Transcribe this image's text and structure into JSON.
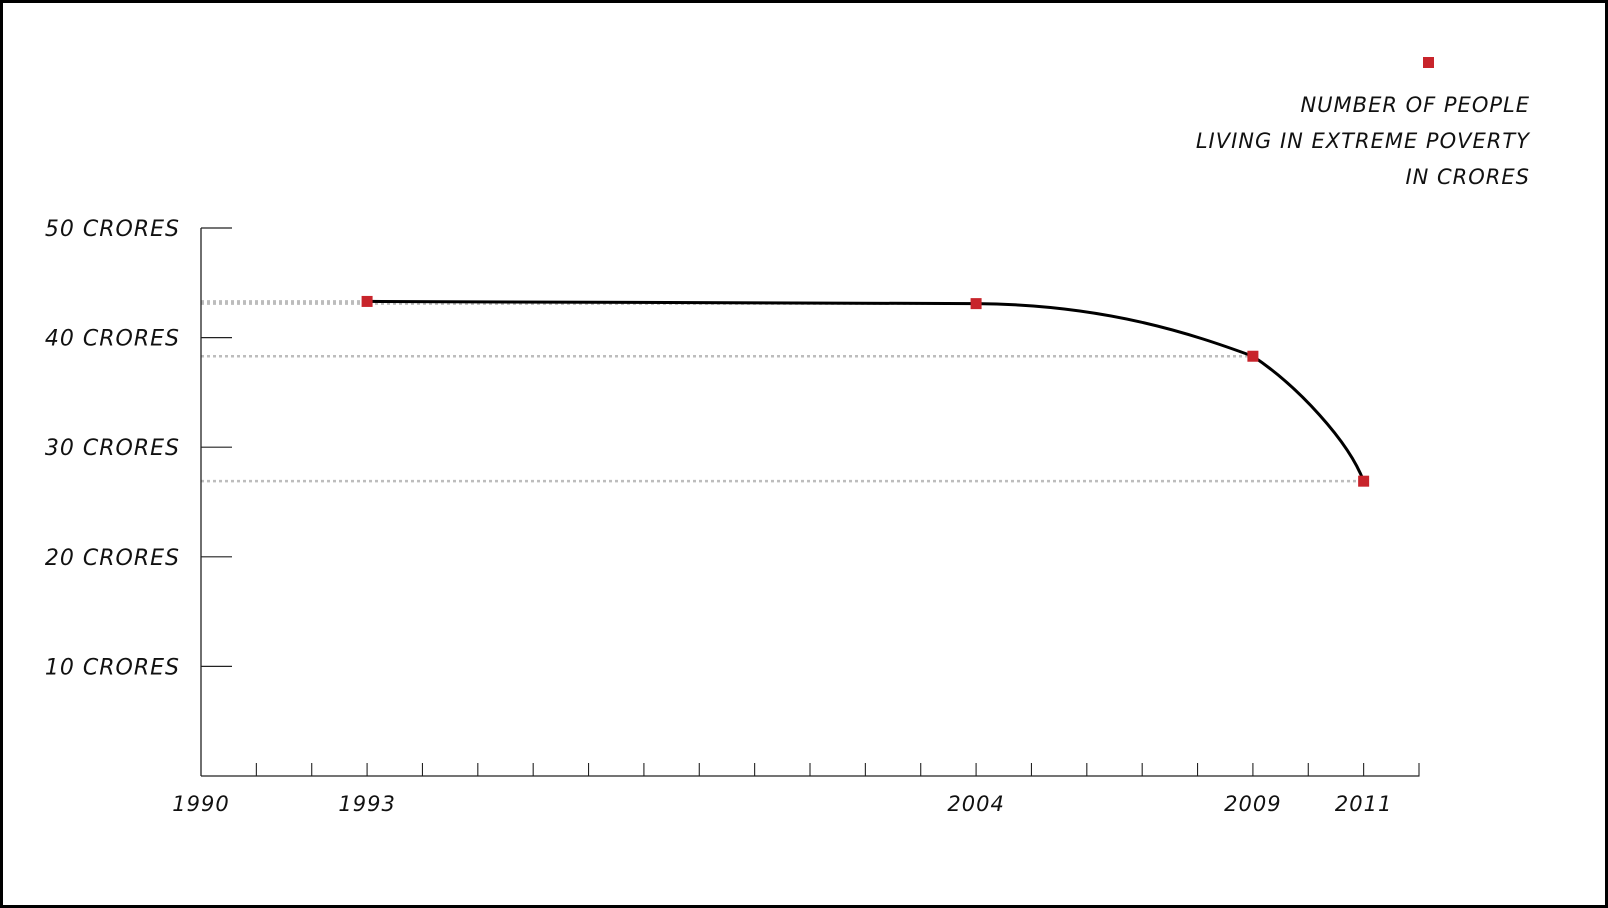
{
  "chart_data": {
    "type": "line",
    "title": "",
    "xlabel": "",
    "ylabel": "",
    "x": [
      1993,
      2004,
      2009,
      2011
    ],
    "series": [
      {
        "name": "NUMBER OF PEOPLE LIVING IN EXTREME POVERTY IN CRORES",
        "values": [
          43.3,
          43.1,
          38.3,
          26.9
        ],
        "color": "#c8242b"
      }
    ],
    "xlim": [
      1990,
      2012
    ],
    "ylim": [
      0,
      50
    ],
    "x_tick_labels": [
      {
        "year": 1990,
        "label": "1990"
      },
      {
        "year": 1993,
        "label": "1993"
      },
      {
        "year": 2004,
        "label": "2004"
      },
      {
        "year": 2009,
        "label": "2009"
      },
      {
        "year": 2011,
        "label": "2011"
      }
    ],
    "y_tick_labels": [
      {
        "value": 10,
        "label": "10 CRORES"
      },
      {
        "value": 20,
        "label": "20 CRORES"
      },
      {
        "value": 30,
        "label": "30 CRORES"
      },
      {
        "value": 40,
        "label": "40 CRORES"
      },
      {
        "value": 50,
        "label": "50 CRORES"
      }
    ],
    "legend": {
      "position": "top-right",
      "lines": [
        "NUMBER OF PEOPLE",
        "LIVING IN EXTREME POVERTY",
        "IN CRORES"
      ]
    },
    "reference_lines": "dotted horizontal guides from y-axis to each point",
    "grid": false
  }
}
